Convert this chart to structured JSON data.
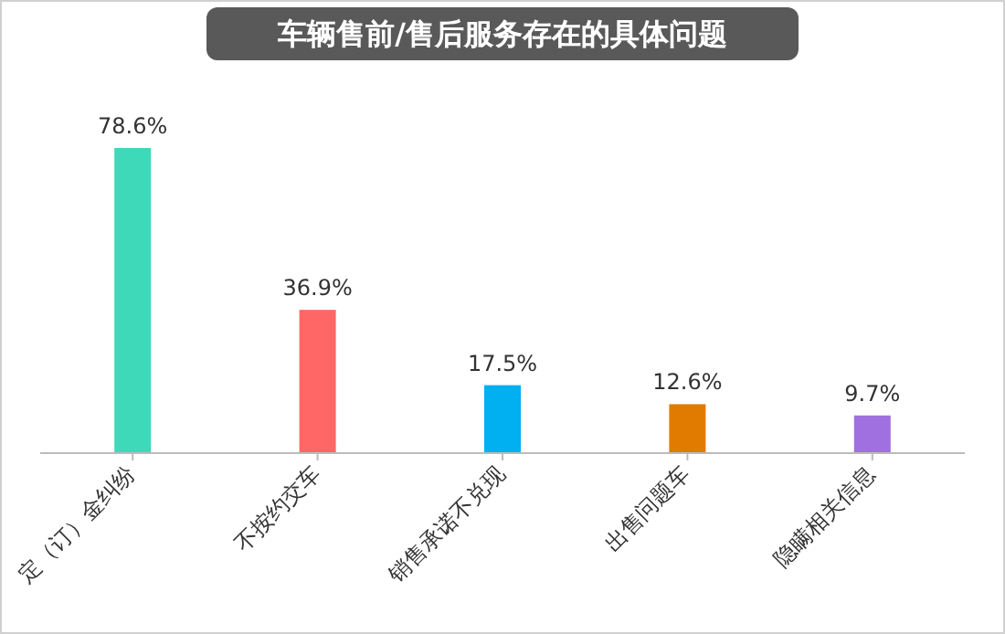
{
  "chart_data": {
    "type": "bar",
    "title": "车辆售前/售后服务存在的具体问题",
    "categories": [
      "定（订）金纠纷",
      "不按约交车",
      "销售承诺不兑现",
      "出售问题车",
      "隐瞒相关信息"
    ],
    "values": [
      78.6,
      36.9,
      17.5,
      12.6,
      9.7
    ],
    "colors": [
      "#3dd9b8",
      "#ff6666",
      "#00b0f0",
      "#e07b00",
      "#a070e0"
    ],
    "value_labels": [
      "78.6%",
      "36.9%",
      "17.5%",
      "12.6%",
      "9.7%"
    ]
  }
}
